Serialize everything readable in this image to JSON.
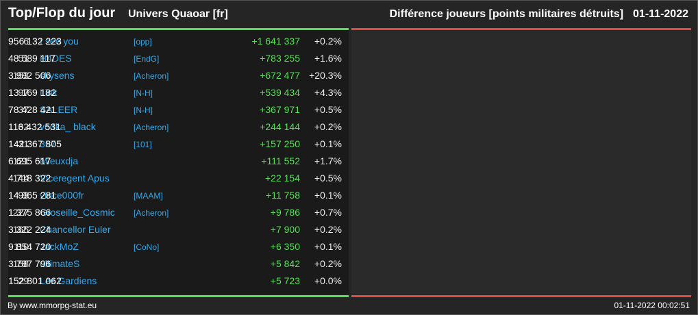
{
  "header": {
    "title": "Top/Flop du jour",
    "universe": "Univers Quaoar [fr]",
    "metric": "Différence joueurs [points militaires détruits]",
    "date": "01-11-2022"
  },
  "rows": [
    {
      "rank": "6",
      "name": "I see you",
      "ally": "[opp]",
      "points": "956 132 223",
      "diff": "+1 641 337",
      "pct": "+0.2%"
    },
    {
      "rank": "51",
      "name": "H4DES",
      "ally": "[EndG]",
      "points": "48 589 117",
      "diff": "+783 255",
      "pct": "+1.6%"
    },
    {
      "rank": "153",
      "name": "skysens",
      "ally": "[Acheron]",
      "points": "3 982 506",
      "diff": "+672 477",
      "pct": "+20.3%"
    },
    {
      "rank": "97",
      "name": "Link",
      "ally": "[N-H]",
      "points": "13 169 182",
      "diff": "+539 434",
      "pct": "+4.3%"
    },
    {
      "rank": "37",
      "name": "SALEER",
      "ally": "[N-H]",
      "points": "78 428 421",
      "diff": "+367 971",
      "pct": "+0.5%"
    },
    {
      "rank": "32",
      "name": "vodka_ black",
      "ally": "[Acheron]",
      "points": "116 432 531",
      "diff": "+244 144",
      "pct": "+0.2%"
    },
    {
      "rank": "31",
      "name": "357",
      "ally": "[101]",
      "points": "142 367 805",
      "diff": "+157 250",
      "pct": "+0.1%"
    },
    {
      "rank": "121",
      "name": "Mieuxdja",
      "ally": "",
      "points": "6 695 617",
      "diff": "+111 552",
      "pct": "+1.7%"
    },
    {
      "rank": "144",
      "name": "Viceregent Apus",
      "ally": "",
      "points": "4 718 322",
      "diff": "+22 154",
      "pct": "+0.5%"
    },
    {
      "rank": "93",
      "name": "vince000fr",
      "ally": "[MAAM]",
      "points": "14 865 281",
      "diff": "+11 758",
      "pct": "+0.1%"
    },
    {
      "rank": "227",
      "name": "Groseille_Cosmic",
      "ally": "[Acheron]",
      "points": "1 375 866",
      "diff": "+9 786",
      "pct": "+0.7%"
    },
    {
      "rank": "165",
      "name": "Chancellor Euler",
      "ally": "",
      "points": "3 322 224",
      "diff": "+7 900",
      "pct": "+0.2%"
    },
    {
      "rank": "110",
      "name": "JackMoZ",
      "ally": "[CoNo]",
      "points": "9 854 720",
      "diff": "+6 350",
      "pct": "+0.1%"
    },
    {
      "rank": "158",
      "name": "ultimateS",
      "ally": "",
      "points": "3 787 796",
      "diff": "+5 842",
      "pct": "+0.2%"
    },
    {
      "rank": "29",
      "name": "Les Gardiens",
      "ally": "",
      "points": "152 801 062",
      "diff": "+5 723",
      "pct": "+0.0%"
    }
  ],
  "footer": {
    "credit": "By www.mmorpg-stat.eu",
    "timestamp": "01-11-2022 00:02:51"
  },
  "colors": {
    "top": "#55e055",
    "flop": "#e04a40",
    "link": "#2eaaef"
  }
}
